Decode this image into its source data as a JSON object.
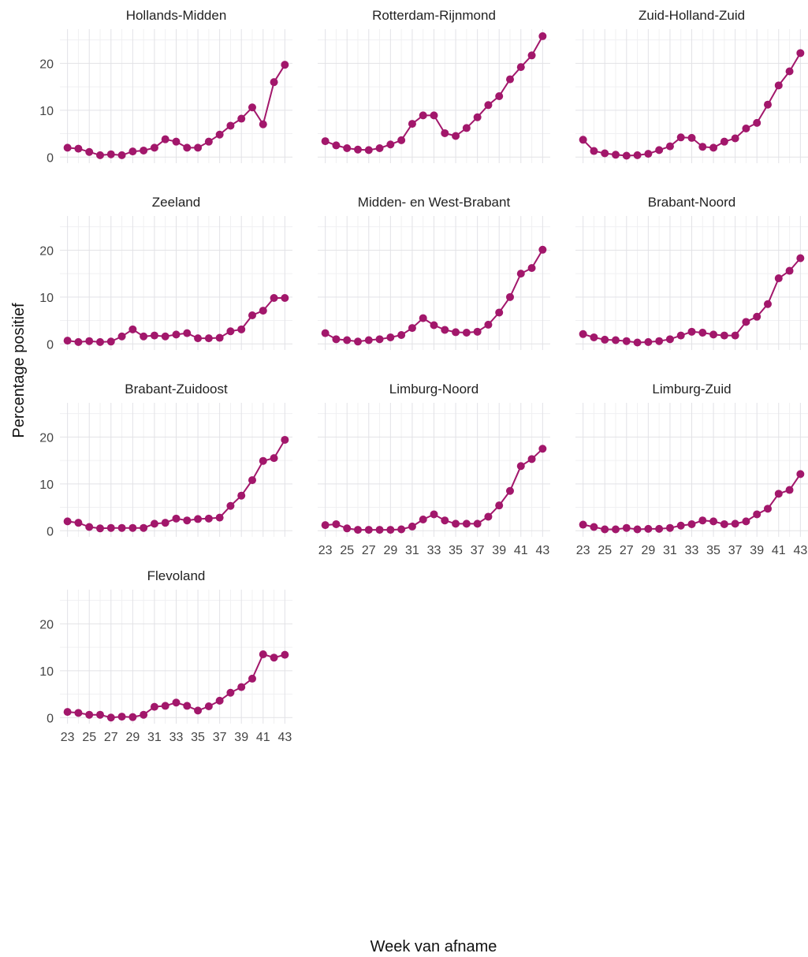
{
  "chart_data": {
    "type": "line",
    "ylabel": "Percentage positief",
    "xlabel": "Week van afname",
    "ylim": [
      0,
      25
    ],
    "y_ticks": [
      "0",
      "10",
      "20"
    ],
    "x_ticks": [
      "23",
      "25",
      "27",
      "29",
      "31",
      "33",
      "35",
      "37",
      "39",
      "41",
      "43"
    ],
    "grid": true,
    "color": "#A2176B",
    "x": [
      23,
      24,
      25,
      26,
      27,
      28,
      29,
      30,
      31,
      32,
      33,
      34,
      35,
      36,
      37,
      38,
      39,
      40,
      41,
      42,
      43
    ],
    "series": [
      {
        "name": "Hollands-Midden",
        "values": [
          2.0,
          1.8,
          1.1,
          0.4,
          0.6,
          0.4,
          1.2,
          1.4,
          2.0,
          3.8,
          3.3,
          2.0,
          2.0,
          3.3,
          4.8,
          6.7,
          8.2,
          10.6,
          7.0,
          16.0,
          19.7
        ]
      },
      {
        "name": "Rotterdam-Rijnmond",
        "values": [
          3.4,
          2.5,
          1.9,
          1.6,
          1.5,
          1.9,
          2.7,
          3.6,
          7.1,
          8.9,
          8.9,
          5.1,
          4.5,
          6.2,
          8.5,
          11.1,
          13.0,
          16.6,
          19.2,
          21.7,
          25.8
        ]
      },
      {
        "name": "Zuid-Holland-Zuid",
        "values": [
          3.7,
          1.3,
          0.8,
          0.5,
          0.3,
          0.4,
          0.7,
          1.5,
          2.3,
          4.2,
          4.1,
          2.2,
          2.0,
          3.3,
          4.0,
          6.1,
          7.3,
          11.2,
          15.3,
          18.3,
          22.2
        ]
      },
      {
        "name": "Zeeland",
        "values": [
          0.7,
          0.4,
          0.6,
          0.4,
          0.5,
          1.6,
          3.1,
          1.6,
          1.8,
          1.6,
          2.0,
          2.3,
          1.2,
          1.2,
          1.3,
          2.7,
          3.1,
          6.1,
          7.1,
          9.8,
          9.8
        ]
      },
      {
        "name": "Midden- en West-Brabant",
        "values": [
          2.3,
          1.0,
          0.8,
          0.5,
          0.8,
          1.0,
          1.4,
          1.9,
          3.4,
          5.5,
          4.0,
          3.0,
          2.5,
          2.4,
          2.6,
          4.1,
          6.7,
          10.0,
          15.0,
          16.2,
          20.1
        ]
      },
      {
        "name": "Brabant-Noord",
        "values": [
          2.1,
          1.4,
          0.9,
          0.8,
          0.6,
          0.3,
          0.4,
          0.6,
          1.0,
          1.8,
          2.6,
          2.4,
          2.0,
          1.8,
          1.8,
          4.7,
          5.8,
          8.5,
          14.0,
          15.6,
          18.3
        ]
      },
      {
        "name": "Brabant-Zuidoost",
        "values": [
          2.0,
          1.7,
          0.8,
          0.5,
          0.6,
          0.6,
          0.6,
          0.6,
          1.5,
          1.7,
          2.6,
          2.2,
          2.5,
          2.6,
          2.8,
          5.3,
          7.5,
          10.8,
          14.9,
          15.5,
          19.4
        ]
      },
      {
        "name": "Limburg-Noord",
        "values": [
          1.2,
          1.4,
          0.5,
          0.2,
          0.2,
          0.2,
          0.2,
          0.3,
          0.9,
          2.4,
          3.5,
          2.2,
          1.5,
          1.5,
          1.5,
          3.0,
          5.4,
          8.5,
          13.8,
          15.3,
          17.5
        ]
      },
      {
        "name": "Limburg-Zuid",
        "values": [
          1.3,
          0.8,
          0.3,
          0.3,
          0.6,
          0.3,
          0.4,
          0.4,
          0.6,
          1.1,
          1.4,
          2.2,
          2.0,
          1.4,
          1.5,
          2.0,
          3.5,
          4.7,
          7.9,
          8.7,
          12.1
        ]
      },
      {
        "name": "Flevoland",
        "values": [
          1.2,
          1.0,
          0.6,
          0.6,
          0.0,
          0.2,
          0.1,
          0.6,
          2.3,
          2.5,
          3.2,
          2.5,
          1.5,
          2.4,
          3.6,
          5.3,
          6.5,
          8.3,
          13.5,
          12.8,
          13.4
        ]
      }
    ]
  }
}
